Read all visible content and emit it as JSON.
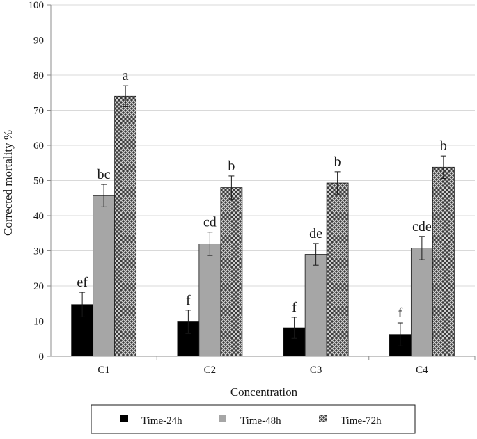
{
  "chart_data": {
    "type": "bar",
    "title": "",
    "xlabel": "Concentration",
    "ylabel": "Corrected mortality %",
    "ylim": [
      0,
      100
    ],
    "yticks": [
      0,
      10,
      20,
      30,
      40,
      50,
      60,
      70,
      80,
      90,
      100
    ],
    "grid": "horizontal",
    "legend_position": "bottom",
    "categories": [
      "C1",
      "C2",
      "C3",
      "C4"
    ],
    "series": [
      {
        "name": "Time-24h",
        "fill": "solid-black",
        "values": [
          14.7,
          9.8,
          8.1,
          6.2
        ],
        "errors": [
          3.5,
          3.3,
          3.0,
          3.3
        ],
        "labels": [
          "ef",
          "f",
          "f",
          "f"
        ]
      },
      {
        "name": "Time-48h",
        "fill": "gray",
        "values": [
          45.7,
          32.0,
          29.0,
          30.8
        ],
        "errors": [
          3.2,
          3.3,
          3.1,
          3.3
        ],
        "labels": [
          "bc",
          "cd",
          "de",
          "cde"
        ]
      },
      {
        "name": "Time-72h",
        "fill": "crosshatch",
        "values": [
          74.0,
          48.0,
          49.3,
          53.8
        ],
        "errors": [
          3.0,
          3.3,
          3.2,
          3.2
        ],
        "labels": [
          "a",
          "b",
          "b",
          "b"
        ]
      }
    ]
  },
  "colors": {
    "black": "#000000",
    "gray": "#a6a6a6",
    "gridline": "#d9d9d9",
    "axis": "#8c8c8c",
    "hatch_bg": "#3a3a3a",
    "hatch_line": "#d0d0d0"
  }
}
